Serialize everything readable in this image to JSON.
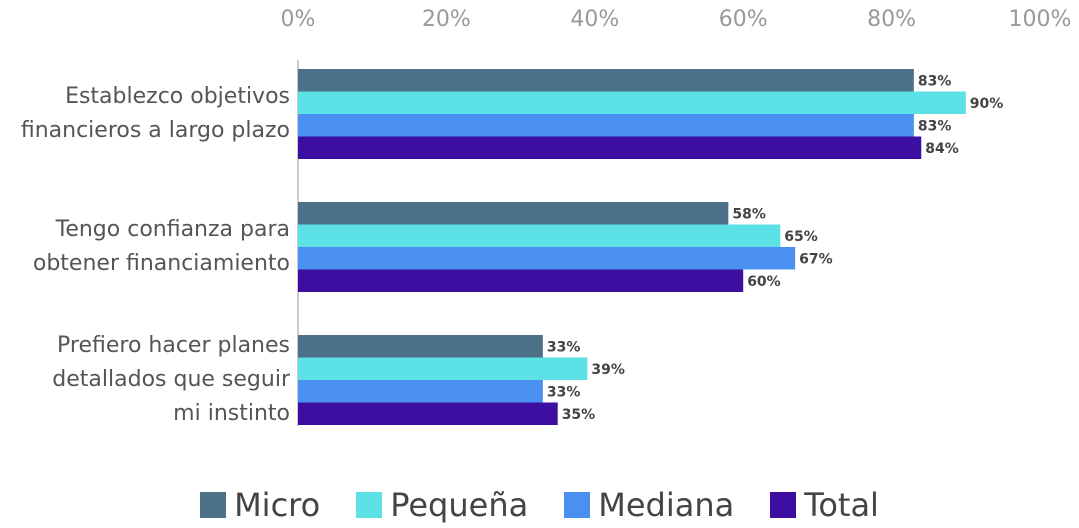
{
  "chart_data": {
    "type": "barh",
    "categories": [
      "Establezco objetivos financieros a largo plazo",
      "Tengo confianza para obtener financiamiento",
      "Prefiero hacer planes detallados que seguir mi instinto"
    ],
    "series": [
      {
        "name": "Micro",
        "color": "#4d7189",
        "values": [
          83,
          58,
          33
        ],
        "value_labels": [
          "83%",
          "58%",
          "33%"
        ]
      },
      {
        "name": "Pequeña",
        "color": "#5ce1e6",
        "values": [
          90,
          65,
          39
        ],
        "value_labels": [
          "90%",
          "65%",
          "39%"
        ]
      },
      {
        "name": "Mediana",
        "color": "#4a90f0",
        "values": [
          83,
          67,
          33
        ],
        "value_labels": [
          "83%",
          "67%",
          "33%"
        ]
      },
      {
        "name": "Total",
        "color": "#3d0fa0",
        "values": [
          84,
          60,
          35
        ],
        "value_labels": [
          "84%",
          "60%",
          "35%"
        ]
      }
    ],
    "xlim": [
      0,
      100
    ],
    "xticks": [
      {
        "value": 0,
        "label": "0%"
      },
      {
        "value": 20,
        "label": "20%"
      },
      {
        "value": 40,
        "label": "40%"
      },
      {
        "value": 60,
        "label": "60%"
      },
      {
        "value": 80,
        "label": "80%"
      },
      {
        "value": 100,
        "label": "100%"
      }
    ],
    "legend": "bottom"
  }
}
